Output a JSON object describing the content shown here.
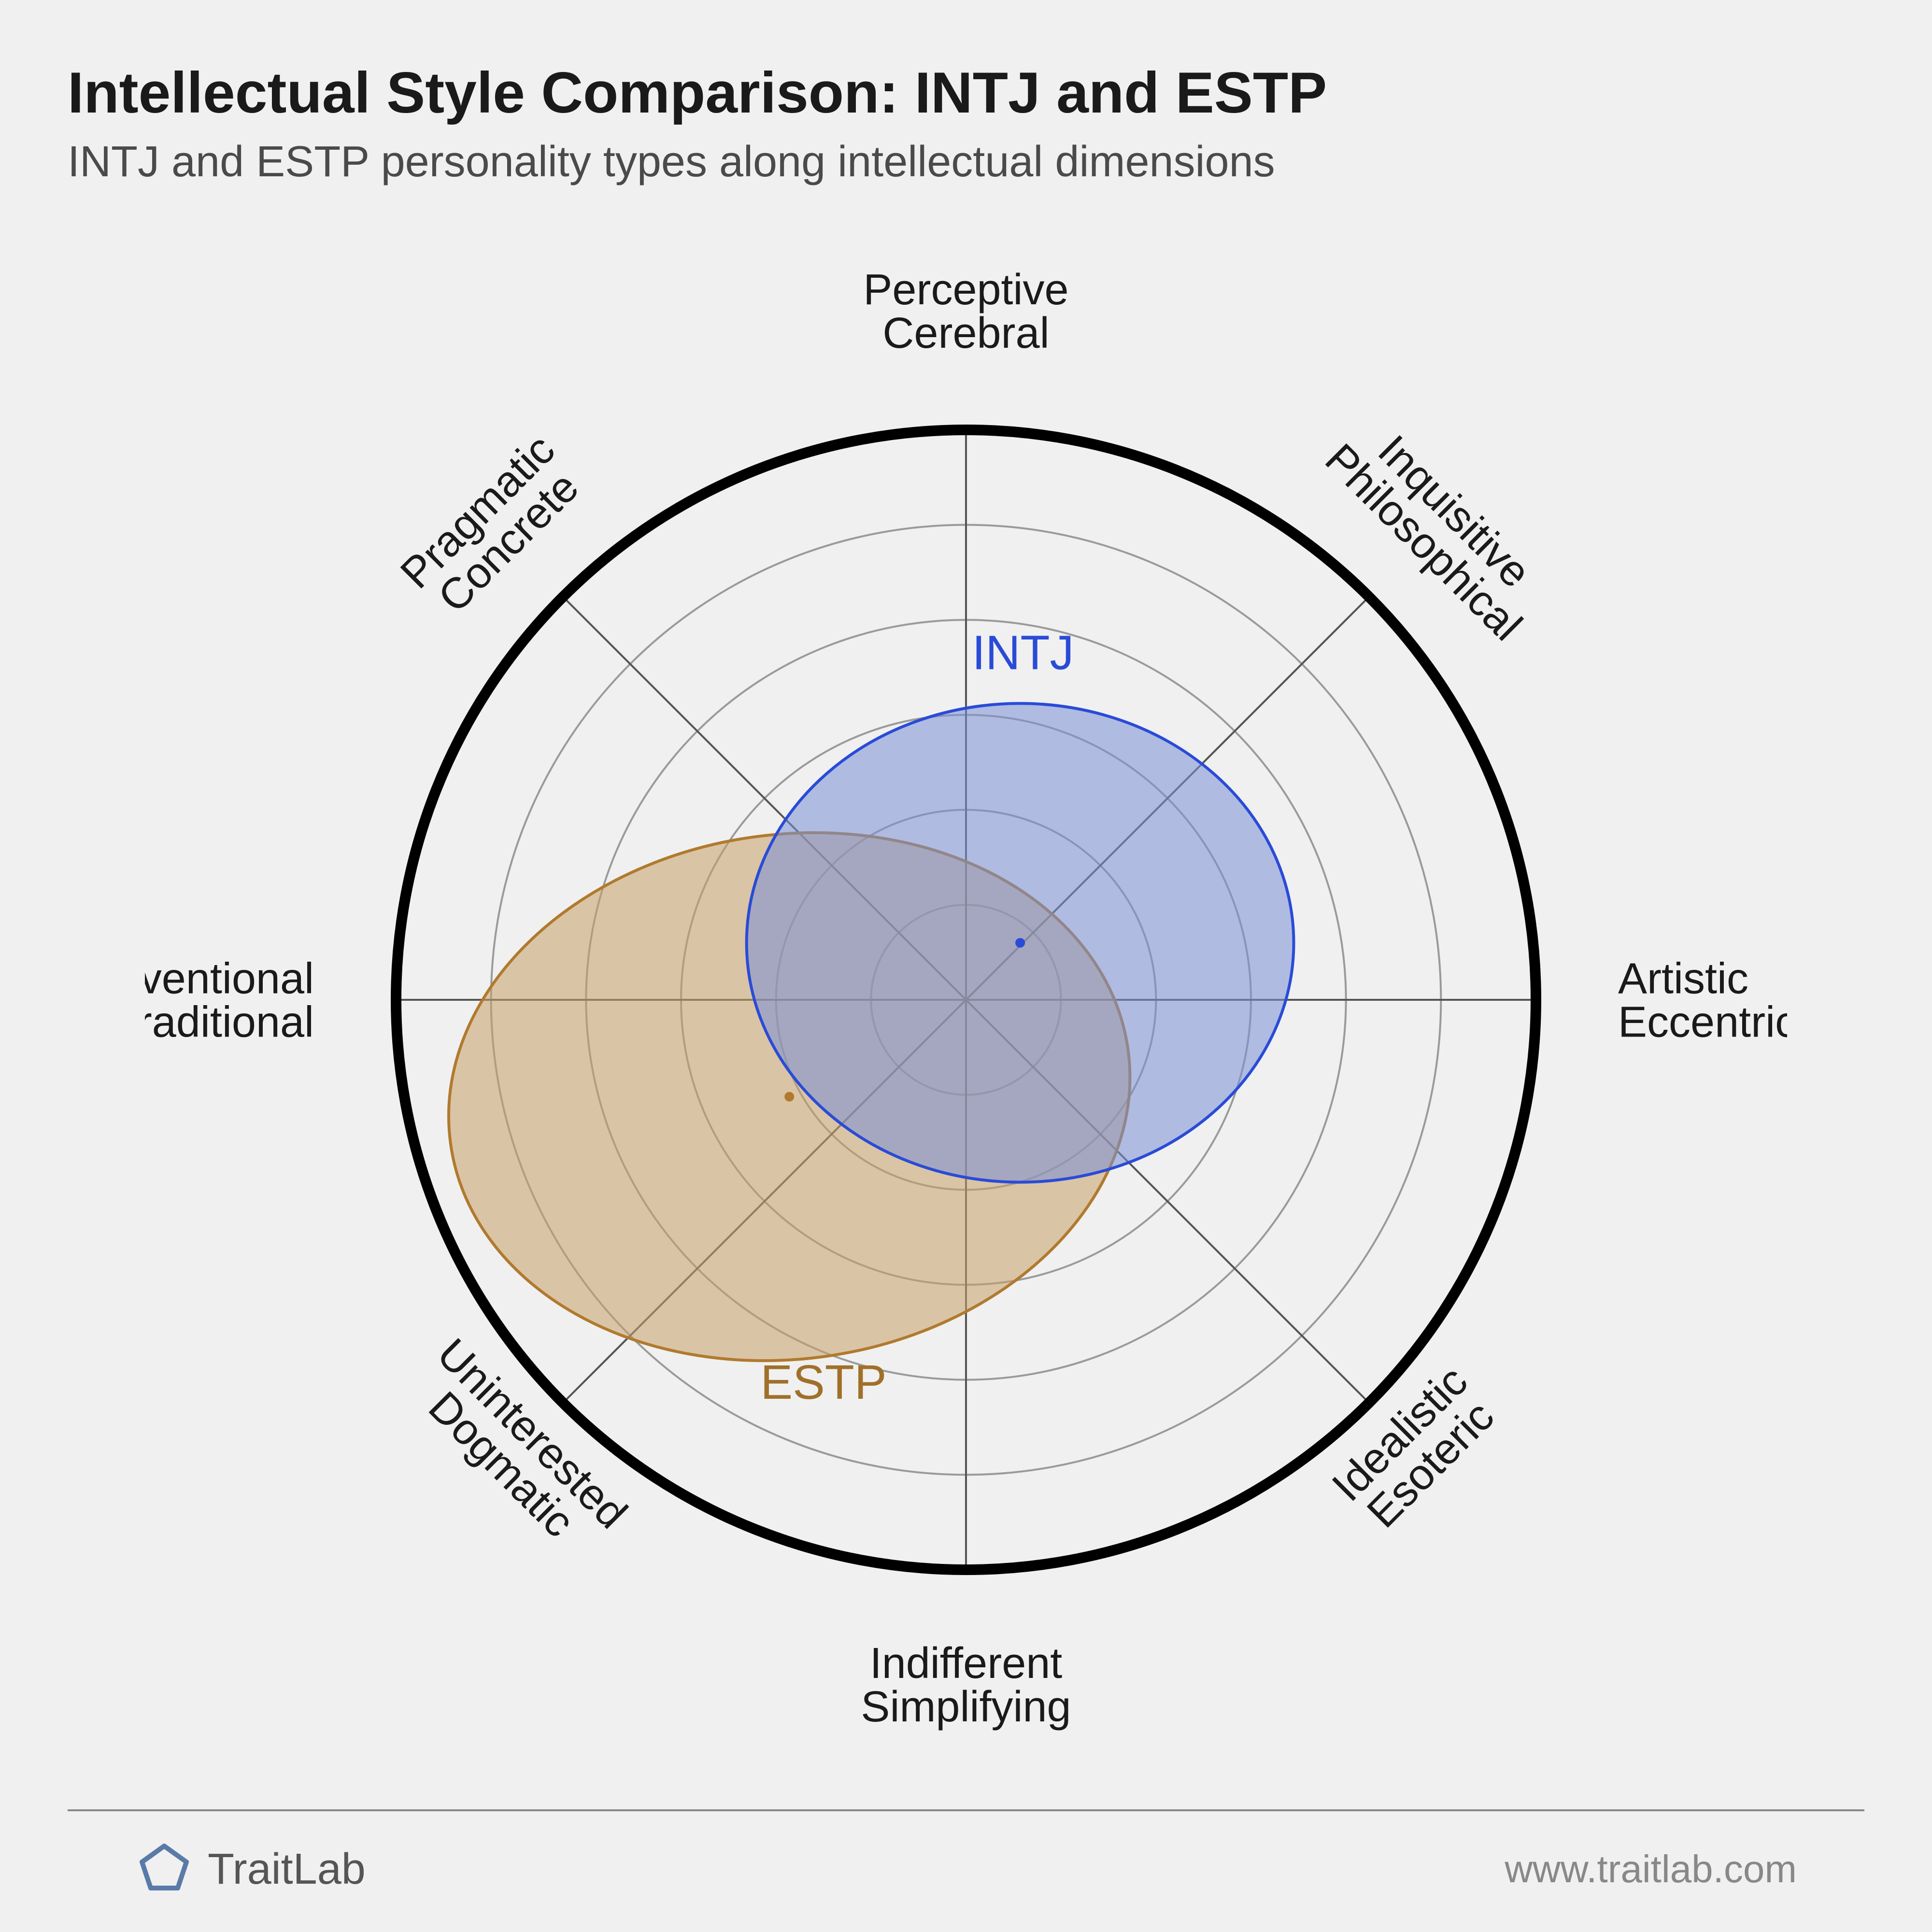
{
  "header": {
    "title": "Intellectual Style Comparison: INTJ and ESTP",
    "subtitle": "INTJ and ESTP personality types along intellectual dimensions"
  },
  "chart": {
    "type": "radar-scatter",
    "background_color": "#f0f0f0",
    "outer_circle": {
      "stroke": "#000000",
      "stroke_width": 22
    },
    "grid": {
      "rings": 6,
      "stroke": "#9a9a9a",
      "stroke_width": 4
    },
    "spokes": {
      "count": 8,
      "stroke": "#555555",
      "stroke_width": 4
    },
    "axis_labels": [
      {
        "angle": 90,
        "line1": "Perceptive",
        "line2": "Cerebral"
      },
      {
        "angle": 45,
        "line1": "Inquisitive",
        "line2": "Philosophical",
        "rotate": 45
      },
      {
        "angle": 0,
        "line1": "Artistic",
        "line2": "Eccentric"
      },
      {
        "angle": -45,
        "line1": "Idealistic",
        "line2": "Esoteric",
        "rotate": -45
      },
      {
        "angle": -90,
        "line1": "Indifferent",
        "line2": "Simplifying"
      },
      {
        "angle": -135,
        "line1": "Uninterested",
        "line2": "Dogmatic",
        "rotate": 45
      },
      {
        "angle": 180,
        "line1": "Conventional",
        "line2": "Traditional"
      },
      {
        "angle": 135,
        "line1": "Pragmatic",
        "line2": "Concrete",
        "rotate": -45
      }
    ],
    "series": [
      {
        "name": "INTJ",
        "label": "INTJ",
        "fill": "#7a8fd6",
        "fill_opacity": 0.55,
        "stroke": "#2a4bd7",
        "stroke_width": 6,
        "label_color": "#2a4bd7",
        "center": {
          "x": 0.095,
          "y": 0.1
        },
        "rx": 0.48,
        "ry": 0.42,
        "rotate": 0,
        "label_pos": {
          "x": 0.1,
          "y": 0.58
        }
      },
      {
        "name": "ESTP",
        "label": "ESTP",
        "fill": "#c9a06a",
        "fill_opacity": 0.55,
        "stroke": "#b07a2e",
        "stroke_width": 6,
        "label_color": "#a0702a",
        "center": {
          "x": -0.31,
          "y": -0.17
        },
        "rx": 0.6,
        "ry": 0.46,
        "rotate": -8,
        "label_pos": {
          "x": -0.25,
          "y": -0.7
        }
      }
    ],
    "max_radius": 1.0
  },
  "footer": {
    "brand": "TraitLab",
    "brand_color": "#5a7aa8",
    "url": "www.traitlab.com"
  }
}
